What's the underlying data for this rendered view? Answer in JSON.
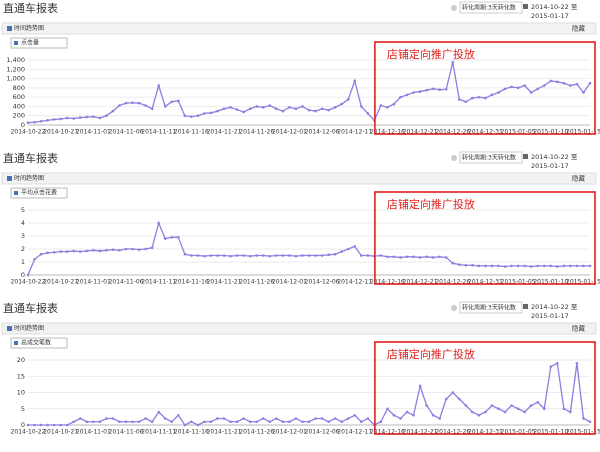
{
  "chart_data": [
    {
      "type": "line",
      "title": "直通车报表",
      "conversion_period": "转化周期:3天转化数",
      "date_from": "2014-10-22 至",
      "date_to": "2015-01-17",
      "panel_title": "时间趋势图",
      "hide_label": "隐藏",
      "annotation": "店铺定向推广投放",
      "categories": [
        "2014-10-22",
        null,
        null,
        null,
        null,
        "2014-10-27",
        null,
        null,
        null,
        null,
        "2014-11-01",
        null,
        null,
        null,
        null,
        "2014-11-06",
        null,
        null,
        null,
        null,
        "2014-11-11",
        null,
        null,
        null,
        null,
        "2014-11-16",
        null,
        null,
        null,
        null,
        "2014-11-21",
        null,
        null,
        null,
        null,
        "2014-11-26",
        null,
        null,
        null,
        null,
        "2014-12-01",
        null,
        null,
        null,
        null,
        "2014-12-06",
        null,
        null,
        null,
        null,
        "2014-12-11",
        null,
        null,
        null,
        null,
        "2014-12-16",
        null,
        null,
        null,
        null,
        "2014-12-21",
        null,
        null,
        null,
        null,
        "2014-12-26",
        null,
        null,
        null,
        null,
        "2014-12-31",
        null,
        null,
        null,
        null,
        "2015-01-05",
        null,
        null,
        null,
        null,
        "2015-01-10",
        null,
        null,
        null,
        null,
        "2015-01-15",
        null
      ],
      "series": [
        {
          "name": "点击量",
          "color": "#8b7fe0",
          "values": [
            50,
            60,
            80,
            100,
            120,
            130,
            150,
            140,
            160,
            170,
            180,
            150,
            200,
            300,
            420,
            470,
            480,
            470,
            420,
            350,
            850,
            400,
            500,
            520,
            200,
            180,
            200,
            250,
            260,
            300,
            350,
            380,
            330,
            280,
            350,
            400,
            380,
            420,
            350,
            300,
            380,
            350,
            400,
            320,
            300,
            350,
            320,
            380,
            450,
            550,
            950,
            400,
            250,
            100,
            420,
            380,
            450,
            600,
            650,
            700,
            720,
            750,
            780,
            760,
            770,
            1350,
            550,
            500,
            580,
            600,
            580,
            650,
            700,
            780,
            820,
            800,
            850,
            700,
            780,
            850,
            950,
            930,
            900,
            850,
            880,
            700,
            900
          ]
        }
      ],
      "ylim": [
        0,
        1400
      ],
      "yticks": [
        0,
        200,
        400,
        600,
        800,
        {
          "value": 1000,
          "label": "1,000"
        },
        {
          "value": 1200,
          "label": "1,200"
        },
        {
          "value": 1400,
          "label": "1,400"
        }
      ],
      "grid": true
    },
    {
      "type": "line",
      "title": "直通车报表",
      "conversion_period": "转化周期:3天转化数",
      "date_from": "2014-10-22 至",
      "date_to": "2015-01-17",
      "panel_title": "时间趋势图",
      "hide_label": "隐藏",
      "annotation": "店铺定向推广投放",
      "categories": [
        "2014-10-22",
        null,
        null,
        null,
        null,
        "2014-10-27",
        null,
        null,
        null,
        null,
        "2014-11-01",
        null,
        null,
        null,
        null,
        "2014-11-06",
        null,
        null,
        null,
        null,
        "2014-11-11",
        null,
        null,
        null,
        null,
        "2014-11-16",
        null,
        null,
        null,
        null,
        "2014-11-21",
        null,
        null,
        null,
        null,
        "2014-11-26",
        null,
        null,
        null,
        null,
        "2014-12-01",
        null,
        null,
        null,
        null,
        "2014-12-06",
        null,
        null,
        null,
        null,
        "2014-12-11",
        null,
        null,
        null,
        null,
        "2014-12-16",
        null,
        null,
        null,
        null,
        "2014-12-21",
        null,
        null,
        null,
        null,
        "2014-12-26",
        null,
        null,
        null,
        null,
        "2014-12-31",
        null,
        null,
        null,
        null,
        "2015-01-05",
        null,
        null,
        null,
        null,
        "2015-01-10",
        null,
        null,
        null,
        null,
        "2015-01-15",
        null
      ],
      "series": [
        {
          "name": "平均点击花费",
          "color": "#8b7fe0",
          "values": [
            0,
            1.2,
            1.6,
            1.7,
            1.75,
            1.8,
            1.8,
            1.85,
            1.8,
            1.85,
            1.9,
            1.85,
            1.9,
            1.95,
            1.9,
            2.0,
            2.0,
            1.95,
            2.0,
            2.1,
            4.0,
            2.8,
            2.9,
            2.9,
            1.6,
            1.5,
            1.5,
            1.45,
            1.5,
            1.5,
            1.5,
            1.45,
            1.5,
            1.5,
            1.45,
            1.5,
            1.5,
            1.45,
            1.5,
            1.5,
            1.5,
            1.45,
            1.5,
            1.5,
            1.5,
            1.5,
            1.55,
            1.6,
            1.8,
            2.0,
            2.2,
            1.5,
            1.5,
            1.45,
            1.5,
            1.4,
            1.4,
            1.35,
            1.4,
            1.4,
            1.35,
            1.4,
            1.35,
            1.4,
            1.35,
            0.9,
            0.8,
            0.75,
            0.75,
            0.7,
            0.7,
            0.7,
            0.7,
            0.65,
            0.7,
            0.7,
            0.7,
            0.65,
            0.7,
            0.7,
            0.7,
            0.65,
            0.7,
            0.7,
            0.7,
            0.7,
            0.7
          ]
        }
      ],
      "ylim": [
        0,
        5
      ],
      "yticks": [
        0,
        1,
        2,
        3,
        4,
        5
      ],
      "grid": true
    },
    {
      "type": "line",
      "title": "直通车报表",
      "conversion_period": "转化周期:3天转化数",
      "date_from": "2014-10-22 至",
      "date_to": "2015-01-17",
      "panel_title": "时间趋势图",
      "hide_label": "隐藏",
      "annotation": "店铺定向推广投放",
      "categories": [
        "2014-10-22",
        null,
        null,
        null,
        null,
        "2014-10-27",
        null,
        null,
        null,
        null,
        "2014-11-01",
        null,
        null,
        null,
        null,
        "2014-11-06",
        null,
        null,
        null,
        null,
        "2014-11-11",
        null,
        null,
        null,
        null,
        "2014-11-16",
        null,
        null,
        null,
        null,
        "2014-11-21",
        null,
        null,
        null,
        null,
        "2014-11-26",
        null,
        null,
        null,
        null,
        "2014-12-01",
        null,
        null,
        null,
        null,
        "2014-12-06",
        null,
        null,
        null,
        null,
        "2014-12-11",
        null,
        null,
        null,
        null,
        "2014-12-16",
        null,
        null,
        null,
        null,
        "2014-12-21",
        null,
        null,
        null,
        null,
        "2014-12-26",
        null,
        null,
        null,
        null,
        "2014-12-31",
        null,
        null,
        null,
        null,
        "2015-01-05",
        null,
        null,
        null,
        null,
        "2015-01-10",
        null,
        null,
        null,
        null,
        "2015-01-15",
        null
      ],
      "series": [
        {
          "name": "总成交笔数",
          "color": "#8b7fe0",
          "values": [
            0,
            0,
            0,
            0,
            0,
            0,
            0,
            1,
            2,
            1,
            1,
            1,
            2,
            2,
            1,
            1,
            1,
            1,
            2,
            1,
            4,
            2,
            1,
            3,
            0,
            1,
            0,
            1,
            1,
            2,
            2,
            1,
            1,
            2,
            1,
            1,
            2,
            1,
            2,
            1,
            1,
            2,
            1,
            1,
            2,
            2,
            1,
            2,
            1,
            2,
            3,
            1,
            2,
            0,
            1,
            5,
            3,
            2,
            4,
            3,
            12,
            6,
            3,
            2,
            8,
            10,
            8,
            6,
            4,
            3,
            4,
            6,
            5,
            4,
            6,
            5,
            4,
            6,
            7,
            5,
            18,
            19,
            5,
            4,
            19,
            2,
            1
          ]
        }
      ],
      "ylim": [
        0,
        20
      ],
      "yticks": [
        0,
        5,
        10,
        15,
        20
      ],
      "grid": true
    }
  ]
}
